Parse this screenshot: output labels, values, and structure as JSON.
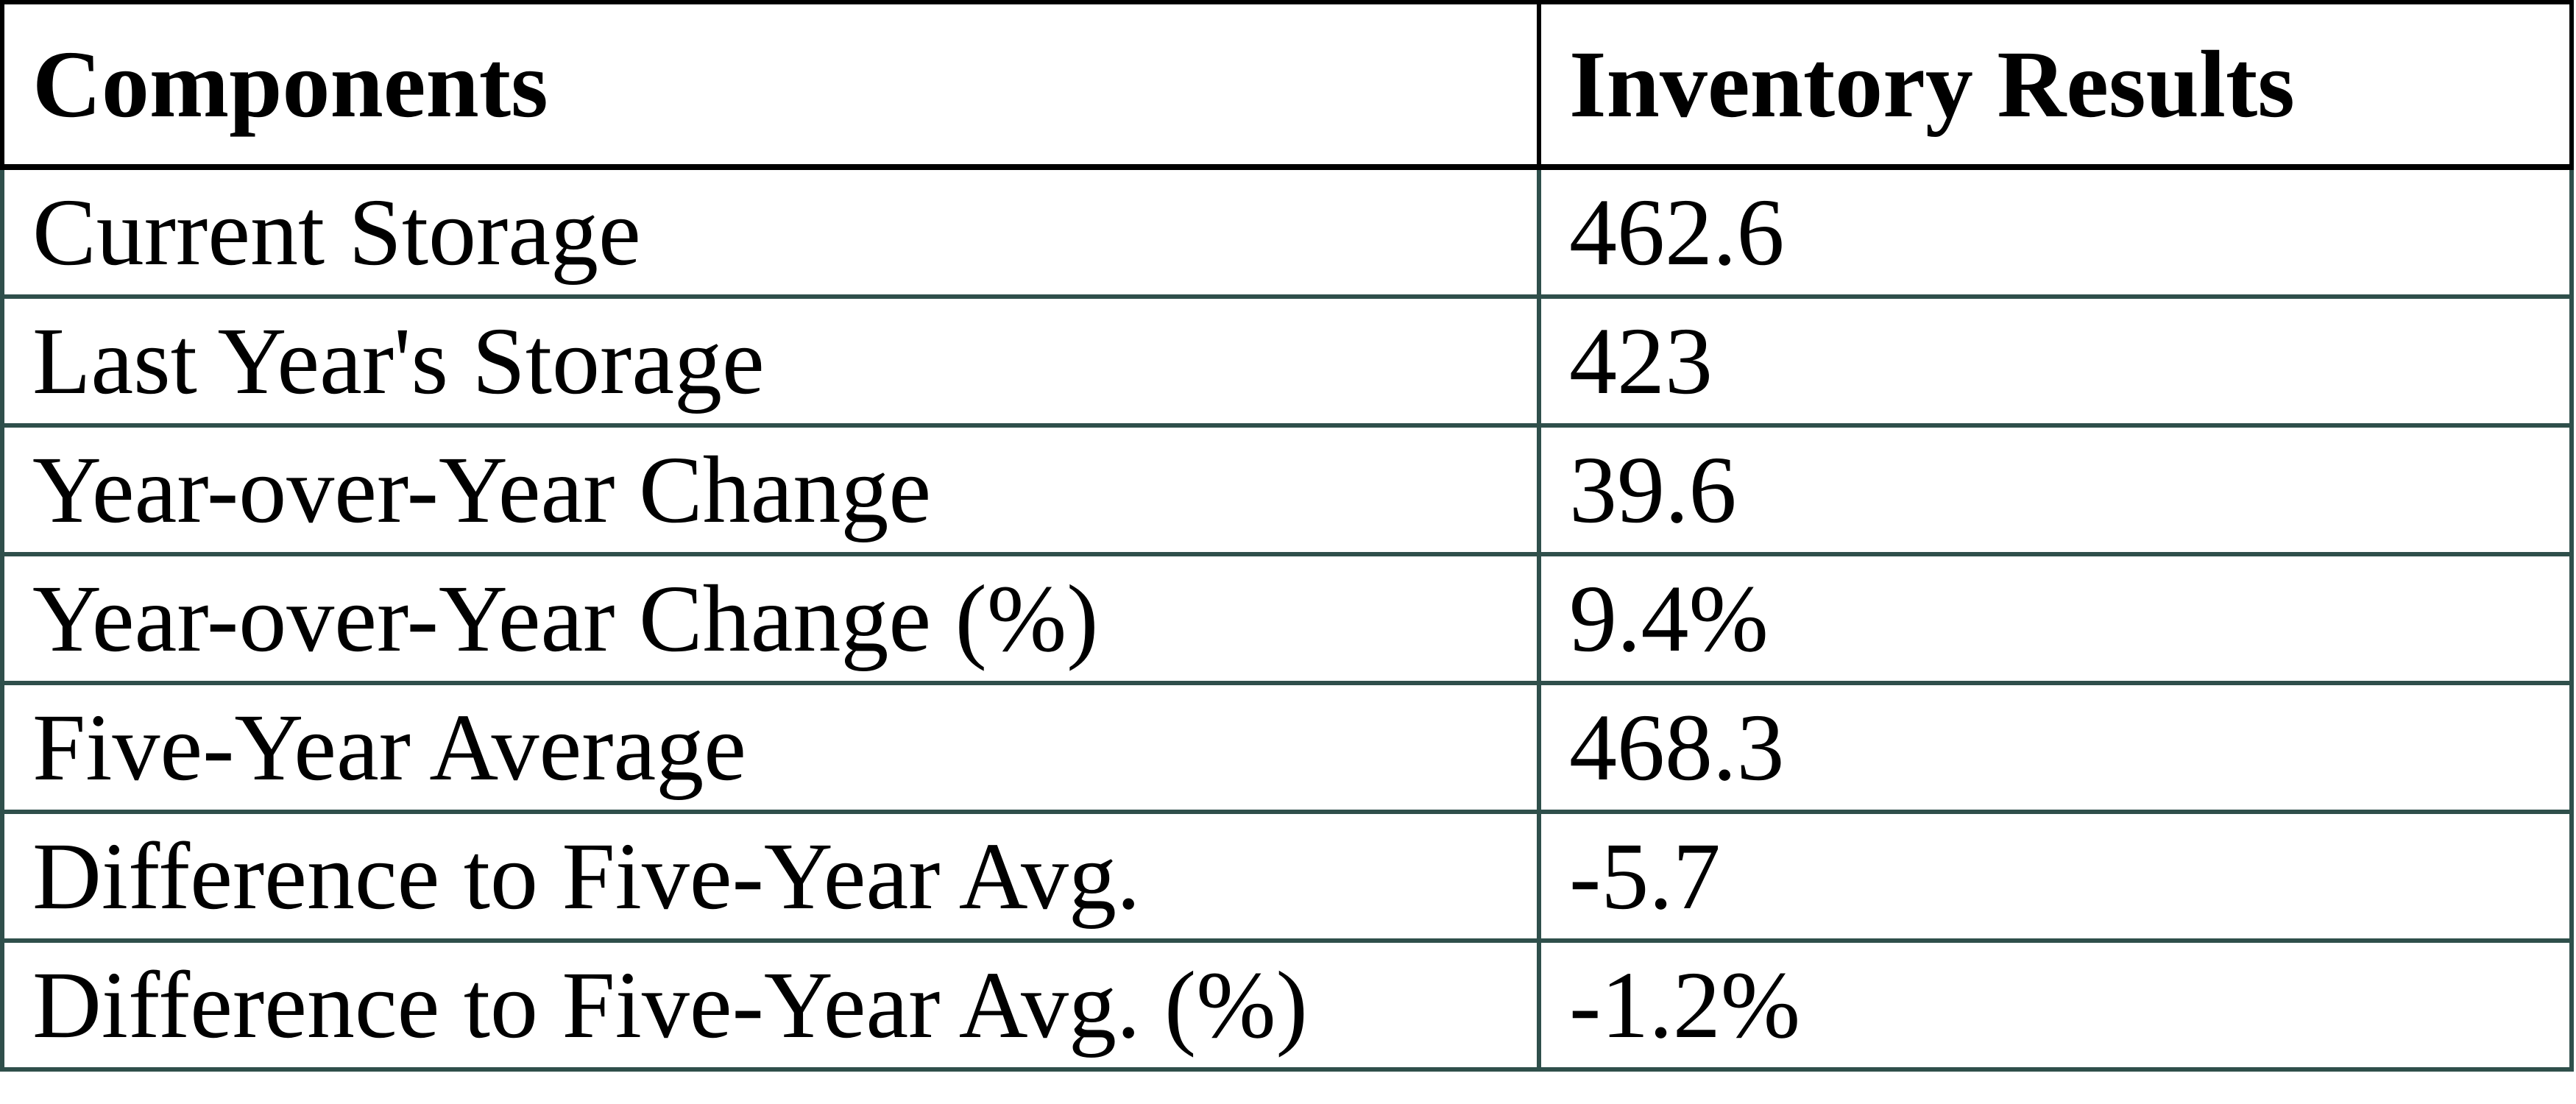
{
  "colors": {
    "header_border": "#000000",
    "body_border": "#2F4F4B",
    "text": "#000000",
    "background": "#FFFFFF"
  },
  "chart_data": {
    "type": "table",
    "columns": [
      "Components",
      "Inventory Results"
    ],
    "rows": [
      {
        "component": "Current Storage",
        "value": "462.6"
      },
      {
        "component": "Last Year's Storage",
        "value": "423"
      },
      {
        "component": "Year-over-Year Change",
        "value": "39.6"
      },
      {
        "component": "Year-over-Year Change (%)",
        "value": "9.4%"
      },
      {
        "component": "Five-Year Average",
        "value": "468.3"
      },
      {
        "component": "Difference to Five-Year Avg.",
        "value": "-5.7"
      },
      {
        "component": "Difference to Five-Year Avg. (%)",
        "value": "-1.2%"
      }
    ]
  }
}
